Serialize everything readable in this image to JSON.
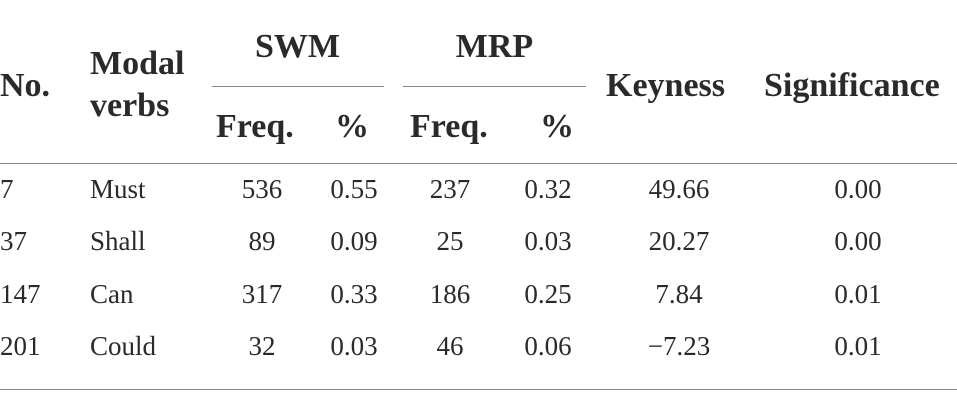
{
  "table": {
    "headers": {
      "no": "No.",
      "modal_line1": "Modal",
      "modal_line2": "verbs",
      "swm": "SWM",
      "mrp": "MRP",
      "swm_freq": "Freq.",
      "swm_pct": "%",
      "mrp_freq": "Freq.",
      "mrp_pct": "%",
      "keyness": "Keyness",
      "significance": "Significance"
    },
    "rows": [
      {
        "no": "7",
        "verb": "Must",
        "swm_freq": "536",
        "swm_pct": "0.55",
        "mrp_freq": "237",
        "mrp_pct": "0.32",
        "keyness": "49.66",
        "significance": "0.00"
      },
      {
        "no": "37",
        "verb": "Shall",
        "swm_freq": "89",
        "swm_pct": "0.09",
        "mrp_freq": "25",
        "mrp_pct": "0.03",
        "keyness": "20.27",
        "significance": "0.00"
      },
      {
        "no": "147",
        "verb": "Can",
        "swm_freq": "317",
        "swm_pct": "0.33",
        "mrp_freq": "186",
        "mrp_pct": "0.25",
        "keyness": "7.84",
        "significance": "0.01"
      },
      {
        "no": "201",
        "verb": "Could",
        "swm_freq": "32",
        "swm_pct": "0.03",
        "mrp_freq": "46",
        "mrp_pct": "0.06",
        "keyness": "−7.23",
        "significance": "0.01"
      }
    ]
  }
}
